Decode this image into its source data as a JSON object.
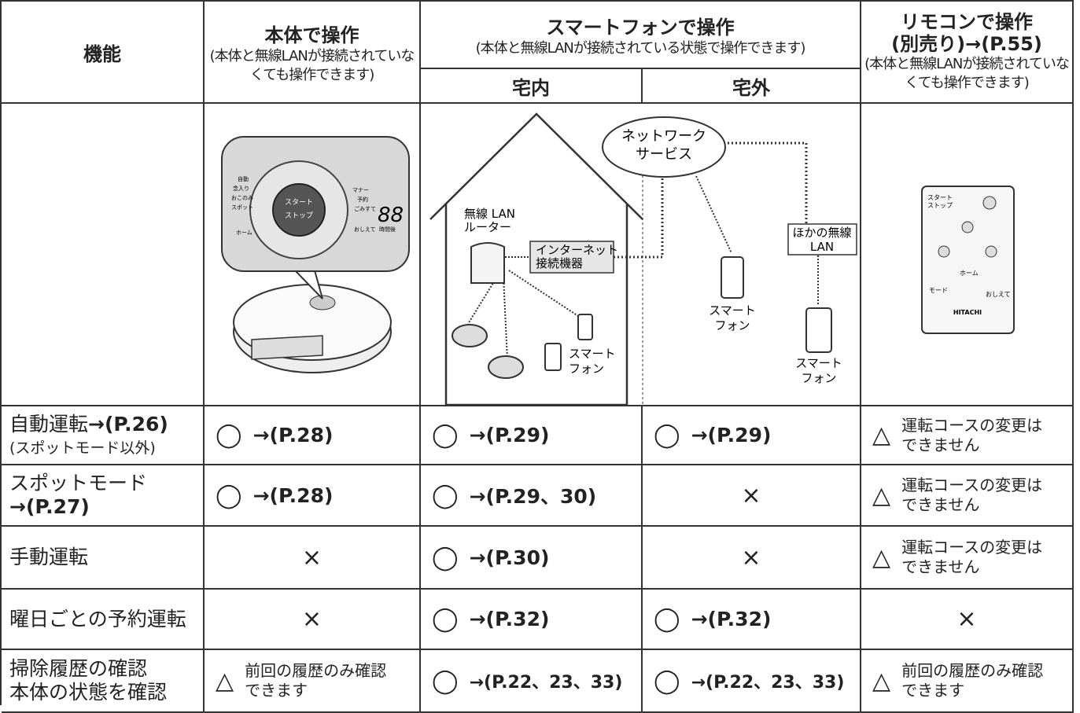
{
  "header": {
    "function": "機能",
    "body": {
      "title": "本体で操作",
      "note": "(本体と無線LANが接続されていなくても操作できます)"
    },
    "smartphone": {
      "title": "スマートフォンで操作",
      "note": "(本体と無線LANが接続されている状態で操作できます)",
      "home": "宅内",
      "away": "宅外"
    },
    "remote": {
      "title": "リモコンで操作",
      "title2": "(別売り)→(P.55)",
      "note": "(本体と無線LANが接続されていなくても操作できます)"
    }
  },
  "illustration": {
    "panel": {
      "left": [
        "自動",
        "念入り",
        "おこのみ",
        "スポット"
      ],
      "home": "ホーム",
      "right": [
        "マナー",
        "予約",
        "ごみすて",
        "おしえて"
      ],
      "start": "スタート",
      "stop": "ストップ",
      "display": "88",
      "time": "時間後"
    },
    "network": [
      "ネットワーク",
      "サービス"
    ],
    "router": [
      "無線 LAN",
      "ルーター"
    ],
    "internet": [
      "インターネット",
      "接続機器"
    ],
    "other_lan": [
      "ほかの無線",
      "LAN"
    ],
    "phone": [
      "スマート",
      "フォン"
    ],
    "remote": {
      "start": "スタート",
      "stop": "ストップ",
      "home": "ホーム",
      "mode": "モード",
      "teach": "おしえて",
      "brand": "HITACHI"
    }
  },
  "table": {
    "rows": [
      {
        "function": [
          "自動運転",
          "→(P.26)"
        ],
        "note": "(スポットモード以外)",
        "cells": [
          {
            "symbol": "◯",
            "text": "→(P.28)"
          },
          {
            "symbol": "◯",
            "text": "→(P.29)"
          },
          {
            "symbol": "◯",
            "text": "→(P.29)"
          },
          {
            "symbol": "△",
            "text": "運転コースの変更はできません"
          }
        ]
      },
      {
        "function": [
          "スポットモード",
          "→(P.27)"
        ],
        "cells": [
          {
            "symbol": "◯",
            "text": "→(P.28)"
          },
          {
            "symbol": "◯",
            "text": "→(P.29、30)"
          },
          {
            "symbol": "×"
          },
          {
            "symbol": "△",
            "text": "運転コースの変更はできません"
          }
        ]
      },
      {
        "function": [
          "手動運転"
        ],
        "cells": [
          {
            "symbol": "×"
          },
          {
            "symbol": "◯",
            "text": "→(P.30)"
          },
          {
            "symbol": "×"
          },
          {
            "symbol": "△",
            "text": "運転コースの変更はできません"
          }
        ]
      },
      {
        "function": [
          "曜日ごとの予約運転"
        ],
        "cells": [
          {
            "symbol": "×"
          },
          {
            "symbol": "◯",
            "text": "→(P.32)"
          },
          {
            "symbol": "◯",
            "text": "→(P.32)"
          },
          {
            "symbol": "×"
          }
        ]
      },
      {
        "function": [
          "掃除履歴の確認",
          "本体の状態を確認"
        ],
        "cells": [
          {
            "symbol": "△",
            "text": "前回の履歴のみ確認できます"
          },
          {
            "symbol": "◯",
            "text": "→(P.22、23、33)"
          },
          {
            "symbol": "◯",
            "text": "→(P.22、23、33)"
          },
          {
            "symbol": "△",
            "text": "前回の履歴のみ確認できます"
          }
        ]
      }
    ]
  }
}
